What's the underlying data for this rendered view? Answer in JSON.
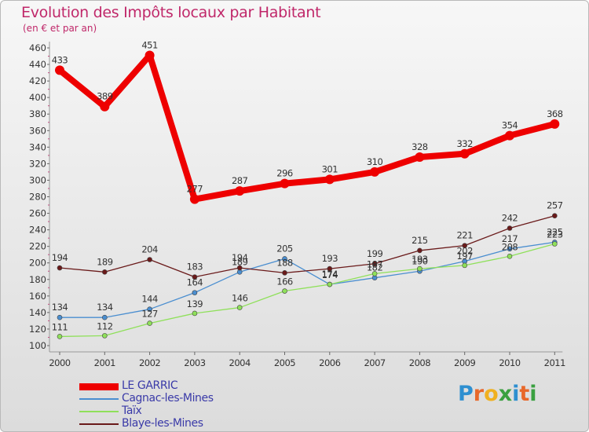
{
  "title": "Evolution des Impôts locaux par Habitant",
  "subtitle": "(en € et par an)",
  "chart_data": {
    "type": "line",
    "title": "Evolution des Impôts locaux par Habitant",
    "subtitle": "(en € et par an)",
    "xlabel": "",
    "ylabel": "",
    "ylim": [
      100,
      460
    ],
    "ytick_step": 20,
    "grid": false,
    "legend_position": "bottom-left",
    "categories": [
      "2000",
      "2001",
      "2002",
      "2003",
      "2004",
      "2005",
      "2006",
      "2007",
      "2008",
      "2009",
      "2010",
      "2011"
    ],
    "series": [
      {
        "name": "LE GARRIC",
        "color": "#ee0000",
        "values": [
          433,
          389,
          451,
          277,
          287,
          296,
          301,
          310,
          328,
          332,
          354,
          368
        ]
      },
      {
        "name": "Cagnac-les-Mines",
        "color": "#4a8ed0",
        "values": [
          134,
          134,
          144,
          164,
          189,
          205,
          174,
          182,
          190,
          202,
          217,
          225
        ]
      },
      {
        "name": "Taïx",
        "color": "#8fe05a",
        "values": [
          111,
          112,
          127,
          139,
          146,
          166,
          174,
          187,
          193,
          197,
          208,
          223
        ]
      },
      {
        "name": "Blaye-les-Mines",
        "color": "#6a1a1a",
        "values": [
          194,
          189,
          204,
          183,
          194,
          188,
          193,
          199,
          215,
          221,
          242,
          257
        ]
      }
    ]
  },
  "logo": {
    "text": "Proxiti",
    "letters": [
      {
        "ch": "P",
        "color": "#2e8fd0"
      },
      {
        "ch": "r",
        "color": "#e8682a"
      },
      {
        "ch": "o",
        "color": "#f0b020"
      },
      {
        "ch": "x",
        "color": "#3aa040"
      },
      {
        "ch": "i",
        "color": "#2e8fd0"
      },
      {
        "ch": "t",
        "color": "#e8682a"
      },
      {
        "ch": "i",
        "color": "#3aa040"
      }
    ]
  }
}
